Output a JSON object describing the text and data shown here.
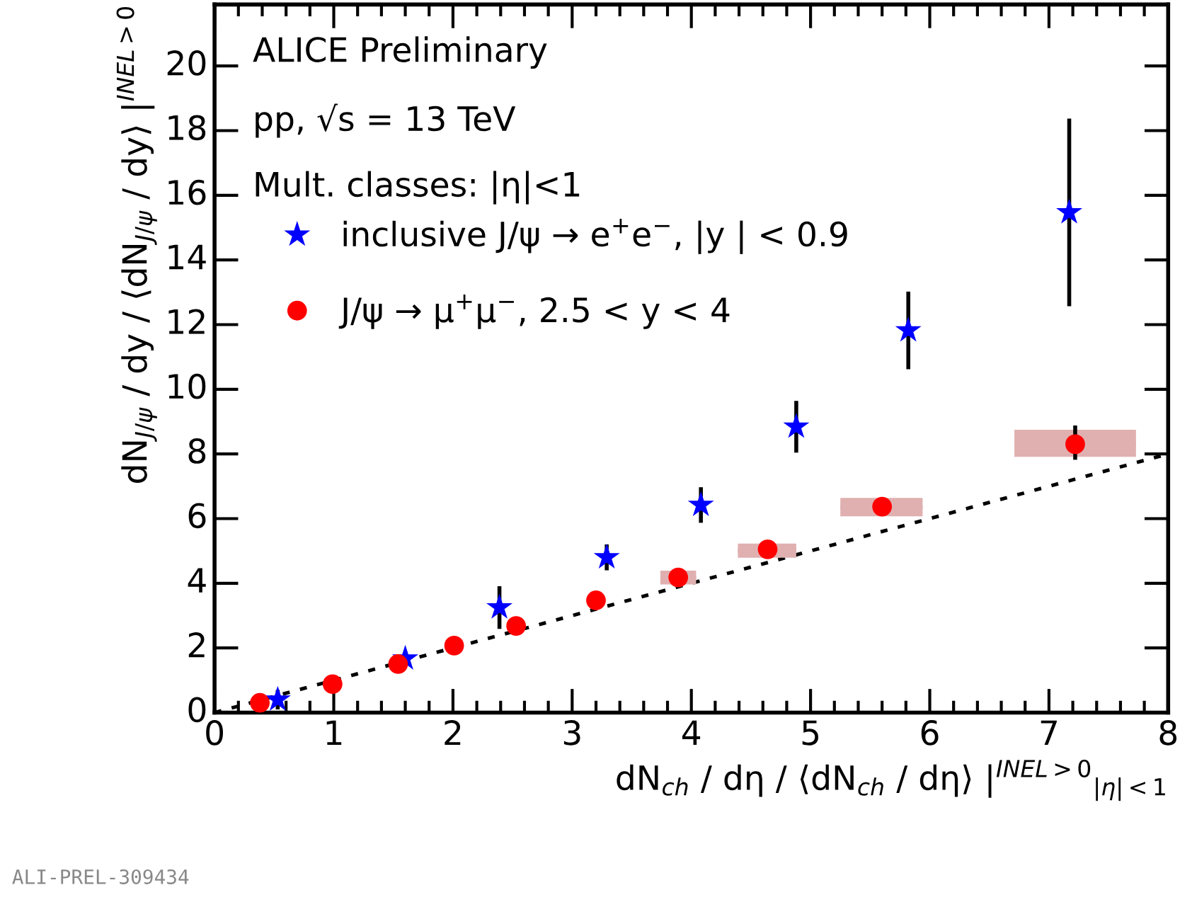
{
  "chart_data": {
    "type": "scatter",
    "xlabel": "dN$_{ch}$ / dη / ⟨dN$_{ch}$ / dη⟩ |$^{INEL>0}$$_{|η|<1}$",
    "ylabel": "dN$_{J/ψ}$ / dy / ⟨dN$_{J/ψ}$ / dy⟩ |$^{INEL>0}$",
    "annotations": [
      "ALICE Preliminary",
      "pp, √s = 13 TeV",
      "Mult. classes: |η|<1",
      "ALI-PREL-309434"
    ],
    "xlim": [
      0,
      8
    ],
    "ylim": [
      0,
      21.9
    ],
    "xticks": [
      0,
      1,
      2,
      3,
      4,
      5,
      6,
      7,
      8
    ],
    "yticks": [
      0,
      2,
      4,
      6,
      8,
      10,
      12,
      14,
      16,
      18,
      20
    ],
    "grid": false,
    "legend": "top left",
    "series": [
      {
        "name": "inclusive J/ψ → e$^{+}$e$^{−}$, |y | < 0.9",
        "type": "scatter",
        "marker": "star",
        "color": "#0000ff",
        "x": [
          0.53,
          1.6,
          2.39,
          3.29,
          4.08,
          4.88,
          5.82,
          7.17
        ],
        "values": [
          0.4,
          1.67,
          3.25,
          4.8,
          6.42,
          8.84,
          11.82,
          15.47
        ],
        "errors": [
          0.3,
          null,
          0.66,
          0.4,
          0.55,
          0.8,
          1.2,
          2.9
        ]
      },
      {
        "type": "bar",
        "color": "#e0b0b0",
        "x": [
          3.89,
          4.635,
          5.595,
          7.22
        ],
        "base": [
          3.96,
          4.79,
          6.07,
          7.91
        ],
        "values": [
          0.43,
          0.44,
          0.57,
          0.84
        ],
        "xerrors": [
          0.15,
          0.245,
          0.345,
          0.51
        ]
      },
      {
        "name": "J/ψ → μ$^{+}$μ$^{−}$, 2.5 < y < 4",
        "type": "scatter",
        "marker": "circle",
        "color": "#ff0000",
        "x": [
          0.38,
          0.99,
          1.54,
          2.01,
          2.53,
          3.2,
          3.89,
          4.64,
          5.6,
          7.22
        ],
        "values": [
          0.3,
          0.88,
          1.5,
          2.07,
          2.68,
          3.47,
          4.18,
          5.05,
          6.37,
          8.3
        ],
        "errors": [
          null,
          null,
          null,
          null,
          null,
          null,
          null,
          null,
          null,
          [
            7.82,
            8.88
          ]
        ]
      },
      {
        "type": "line",
        "line_style": "dotted",
        "color": "#000000",
        "x": [
          0,
          8
        ],
        "values": [
          0,
          8
        ]
      }
    ]
  }
}
